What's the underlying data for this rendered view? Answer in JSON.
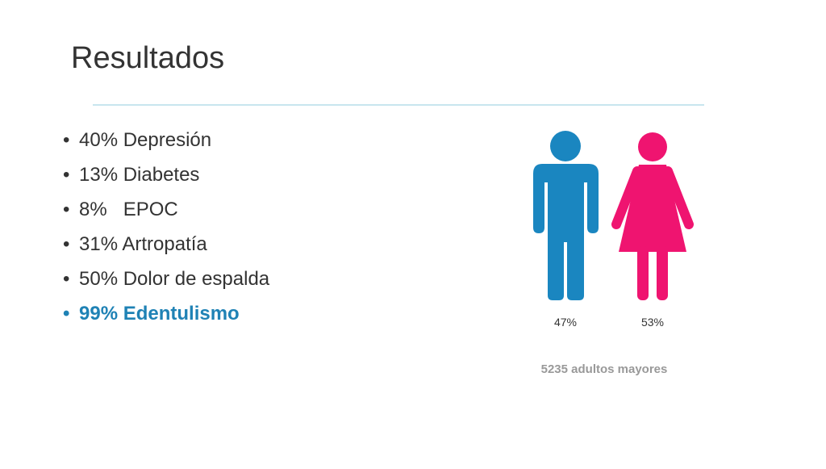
{
  "header": {
    "title": "Resultados"
  },
  "bullets": [
    "40% Depresión",
    "13% Diabetes",
    "8%   EPOC",
    "31% Artropatía",
    "50% Dolor de espalda",
    "99% Edentulismo"
  ],
  "figures": [
    {
      "label": "47%"
    },
    {
      "label": "53%"
    }
  ],
  "caption": "5235 adultos mayores"
}
